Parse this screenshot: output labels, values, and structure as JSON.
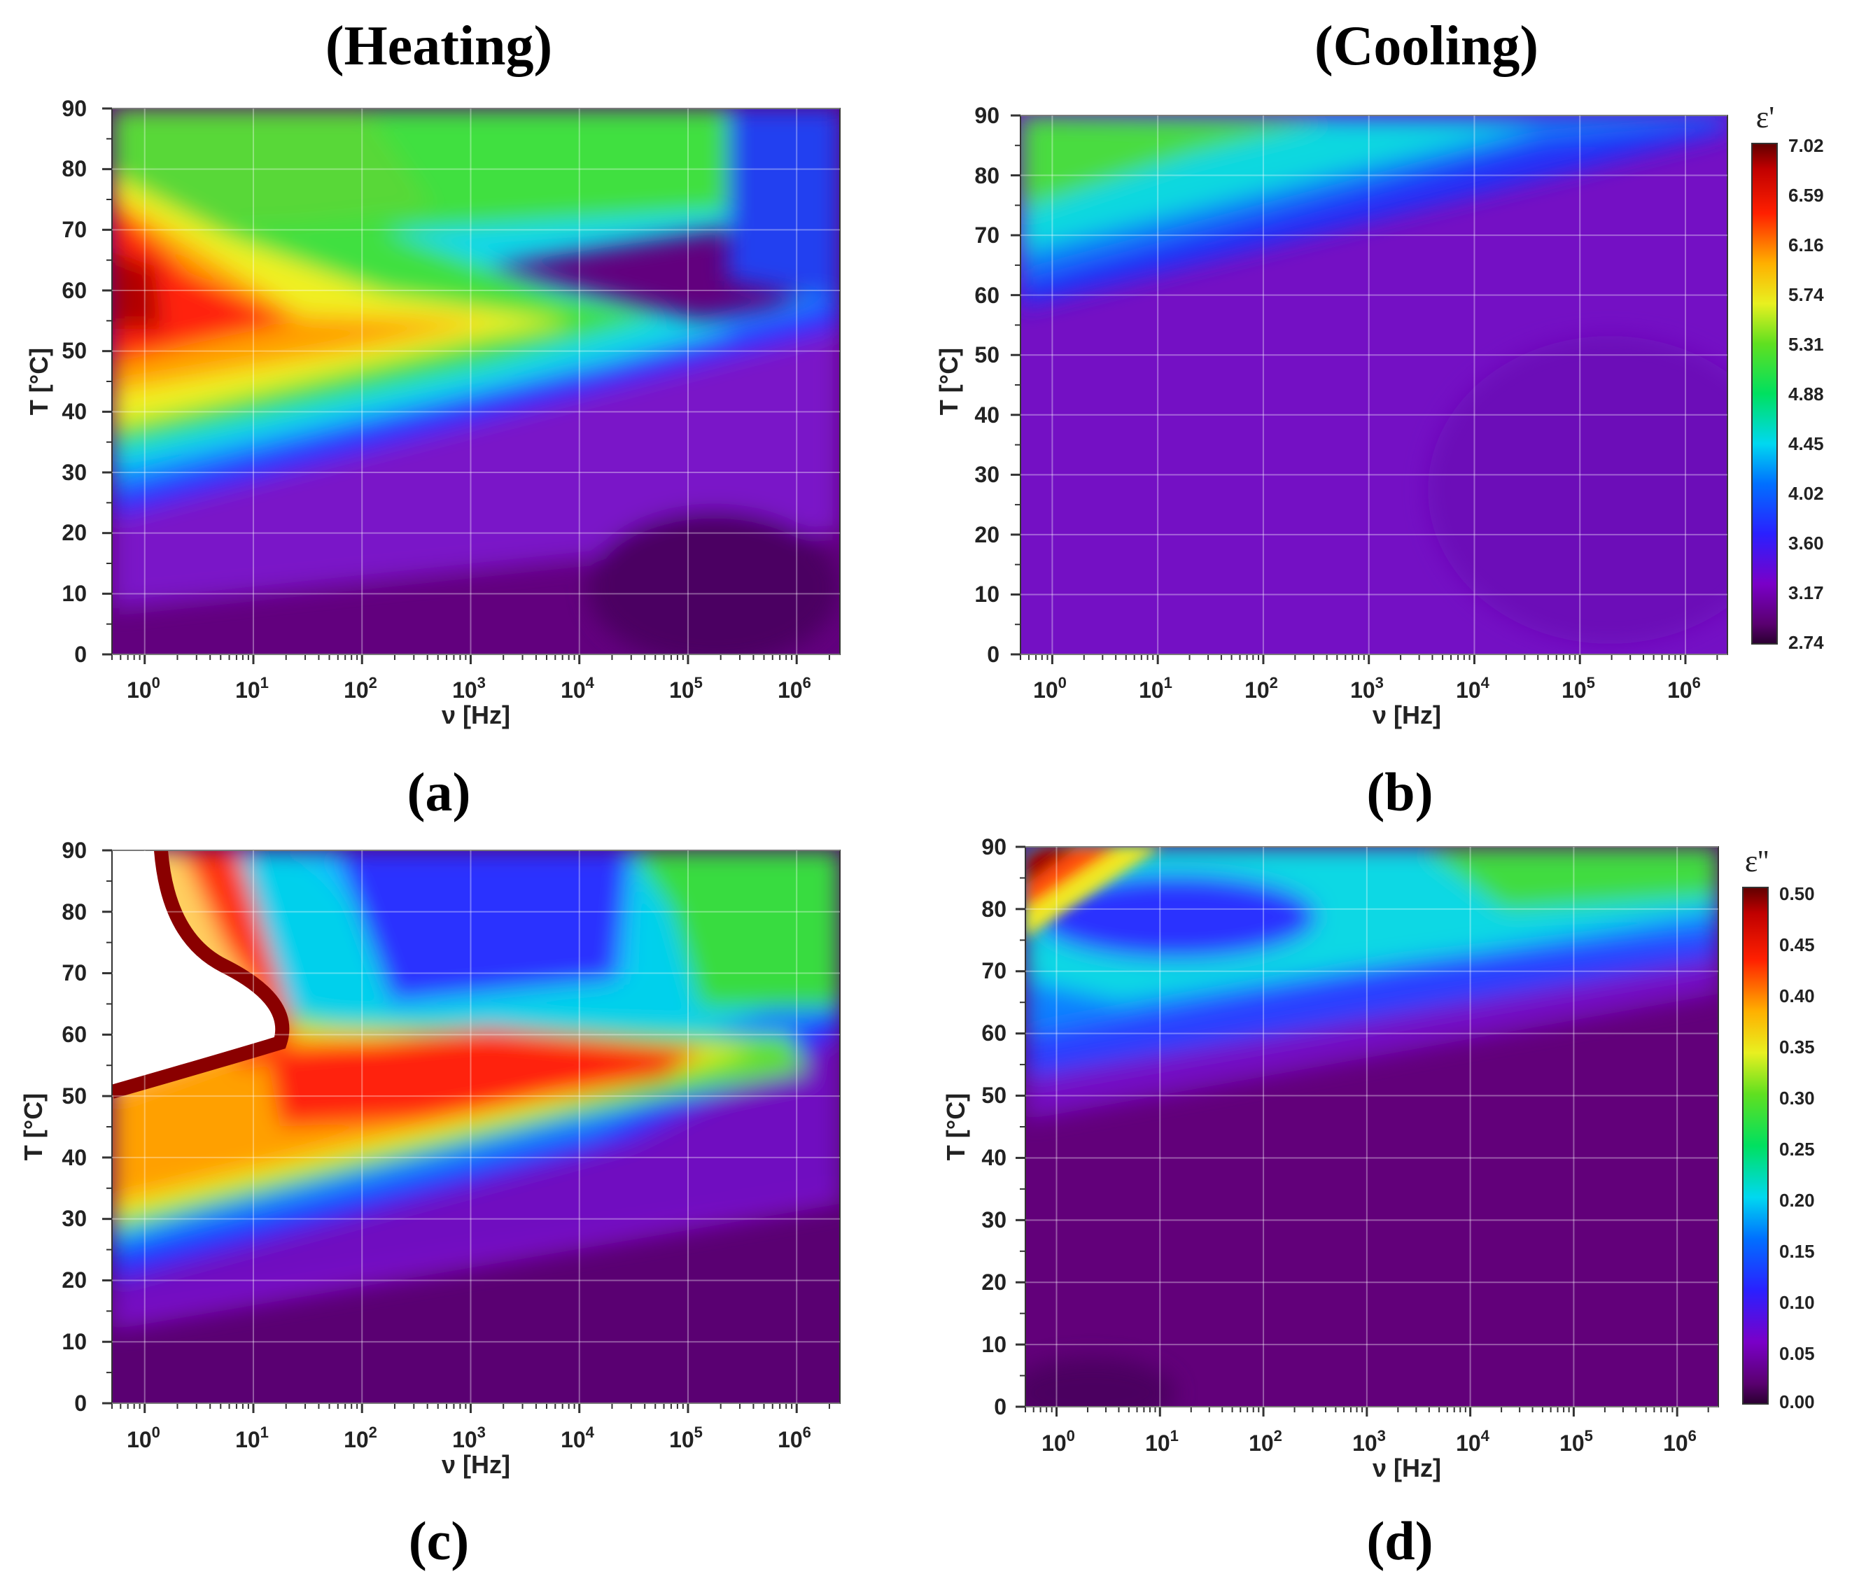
{
  "headings": {
    "heating": "(Heating)",
    "cooling": "(Cooling)"
  },
  "chart_data": [
    {
      "id": "a",
      "type": "heatmap",
      "caption": "(a)",
      "quantity": "ε'",
      "xlabel": "ν [Hz]",
      "ylabel": "T [°C]",
      "xscale": "log",
      "xlim": [
        0.5,
        2500000
      ],
      "ylim": [
        0,
        90
      ],
      "xticks": [
        {
          "base": "10",
          "exp": "0"
        },
        {
          "base": "10",
          "exp": "1"
        },
        {
          "base": "10",
          "exp": "2"
        },
        {
          "base": "10",
          "exp": "3"
        },
        {
          "base": "10",
          "exp": "4"
        },
        {
          "base": "10",
          "exp": "5"
        },
        {
          "base": "10",
          "exp": "6"
        }
      ],
      "yticks": [
        "0",
        "10",
        "20",
        "30",
        "40",
        "50",
        "60",
        "70",
        "80",
        "90"
      ],
      "zlim": [
        2.74,
        7.02
      ]
    },
    {
      "id": "b",
      "type": "heatmap",
      "caption": "(b)",
      "quantity": "ε'",
      "xlabel": "ν [Hz]",
      "ylabel": "T [°C]",
      "xscale": "log",
      "xlim": [
        0.5,
        2500000
      ],
      "ylim": [
        0,
        90
      ],
      "xticks": [
        {
          "base": "10",
          "exp": "0"
        },
        {
          "base": "10",
          "exp": "1"
        },
        {
          "base": "10",
          "exp": "2"
        },
        {
          "base": "10",
          "exp": "3"
        },
        {
          "base": "10",
          "exp": "4"
        },
        {
          "base": "10",
          "exp": "5"
        },
        {
          "base": "10",
          "exp": "6"
        }
      ],
      "yticks": [
        "0",
        "10",
        "20",
        "30",
        "40",
        "50",
        "60",
        "70",
        "80",
        "90"
      ],
      "zlim": [
        2.74,
        7.02
      ],
      "colorbar": {
        "title": "ε'",
        "ticks": [
          "7.02",
          "6.59",
          "6.16",
          "5.74",
          "5.31",
          "4.88",
          "4.45",
          "4.02",
          "3.60",
          "3.17",
          "2.74"
        ]
      }
    },
    {
      "id": "c",
      "type": "heatmap",
      "caption": "(c)",
      "quantity": "ε''",
      "xlabel": "ν [Hz]",
      "ylabel": "T [°C]",
      "xscale": "log",
      "xlim": [
        0.5,
        2500000
      ],
      "ylim": [
        0,
        90
      ],
      "xticks": [
        {
          "base": "10",
          "exp": "0"
        },
        {
          "base": "10",
          "exp": "1"
        },
        {
          "base": "10",
          "exp": "2"
        },
        {
          "base": "10",
          "exp": "3"
        },
        {
          "base": "10",
          "exp": "4"
        },
        {
          "base": "10",
          "exp": "5"
        },
        {
          "base": "10",
          "exp": "6"
        }
      ],
      "yticks": [
        "0",
        "10",
        "20",
        "30",
        "40",
        "50",
        "60",
        "70",
        "80",
        "90"
      ],
      "zlim": [
        0.0,
        0.5
      ]
    },
    {
      "id": "d",
      "type": "heatmap",
      "caption": "(d)",
      "quantity": "ε''",
      "xlabel": "ν [Hz]",
      "ylabel": "T [°C]",
      "xscale": "log",
      "xlim": [
        0.5,
        2500000
      ],
      "ylim": [
        0,
        90
      ],
      "xticks": [
        {
          "base": "10",
          "exp": "0"
        },
        {
          "base": "10",
          "exp": "1"
        },
        {
          "base": "10",
          "exp": "2"
        },
        {
          "base": "10",
          "exp": "3"
        },
        {
          "base": "10",
          "exp": "4"
        },
        {
          "base": "10",
          "exp": "5"
        },
        {
          "base": "10",
          "exp": "6"
        }
      ],
      "yticks": [
        "0",
        "10",
        "20",
        "30",
        "40",
        "50",
        "60",
        "70",
        "80",
        "90"
      ],
      "zlim": [
        0.0,
        0.5
      ],
      "colorbar": {
        "title": "ε''",
        "ticks": [
          "0.50",
          "0.45",
          "0.40",
          "0.35",
          "0.30",
          "0.25",
          "0.20",
          "0.15",
          "0.10",
          "0.05",
          "0.00"
        ]
      }
    }
  ]
}
